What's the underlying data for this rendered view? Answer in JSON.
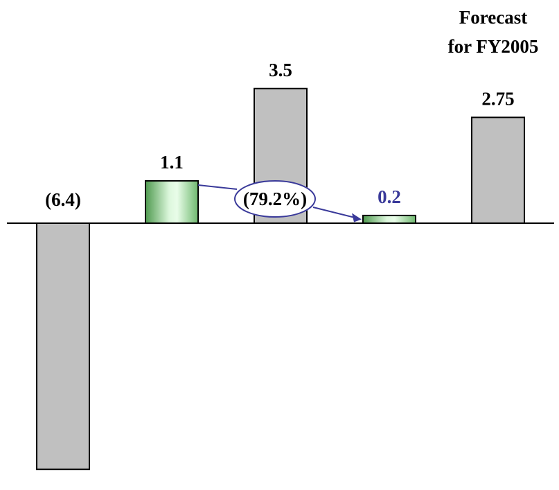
{
  "chart_data": {
    "type": "bar",
    "categories": [
      "",
      "",
      "",
      "",
      ""
    ],
    "values": [
      -6.4,
      1.1,
      3.5,
      0.2,
      2.75
    ],
    "value_labels": [
      "(6.4)",
      "1.1",
      "3.5",
      "0.2",
      "2.75"
    ],
    "bar_styles": [
      "gray",
      "green",
      "gray",
      "green",
      "gray"
    ],
    "label_colors": [
      "#000000",
      "#000000",
      "#000000",
      "#3a3a9a",
      "#000000"
    ],
    "annotation": {
      "text": "(79.2%)",
      "from_bar": 1,
      "to_bar": 3,
      "color": "#3a3a9a"
    },
    "forecast_label": [
      "Forecast",
      "for FY2005"
    ],
    "title": "",
    "xlabel": "",
    "ylabel": "",
    "axis": "zero-line only"
  },
  "colors": {
    "gray_bar": "#c0c0c0",
    "green_light": "#e6fbe6",
    "green_dark": "#7bc57b",
    "outline": "#000000",
    "annotation": "#3a3a9a"
  }
}
